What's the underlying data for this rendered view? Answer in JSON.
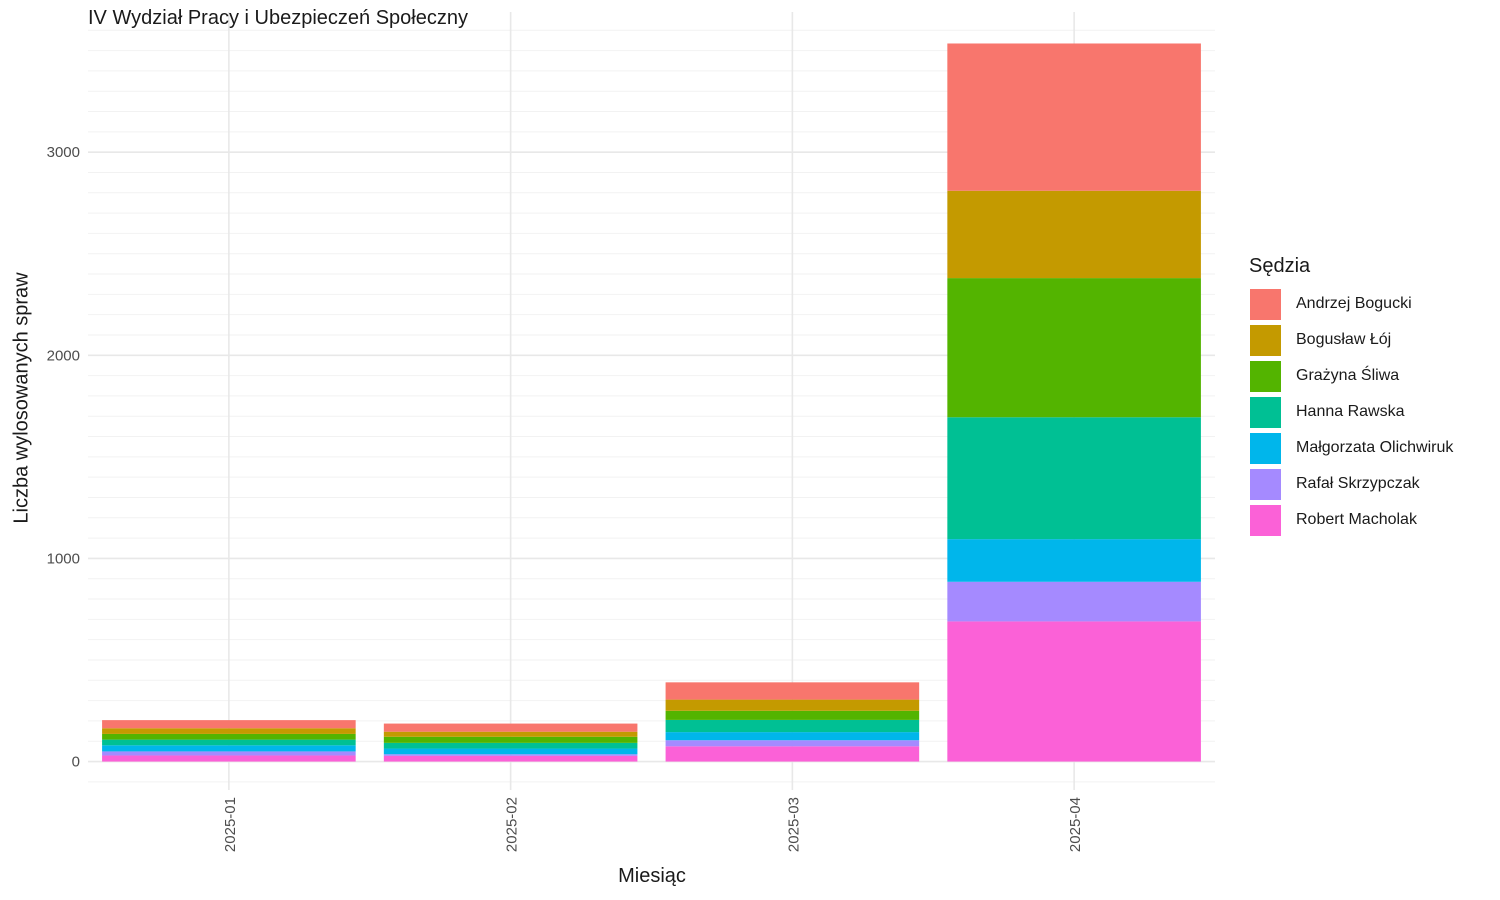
{
  "chart_data": {
    "type": "bar",
    "stacked": true,
    "title": "IV Wydział Pracy i Ubezpieczeń Społeczny",
    "xlabel": "Miesiąc",
    "ylabel": "Liczba wylosowanych spraw",
    "categories": [
      "2025-01",
      "2025-02",
      "2025-03",
      "2025-04"
    ],
    "ylim": [
      -140,
      3690
    ],
    "yticks": [
      0,
      1000,
      2000,
      3000
    ],
    "ytick_labels": [
      "0",
      "1000",
      "2000",
      "3000"
    ],
    "grid": true,
    "legend_title": "Sędzia",
    "legend_position": "right",
    "series": [
      {
        "name": "Andrzej Bogucki",
        "color": "#F8766D",
        "values": [
          40,
          40,
          85,
          725
        ]
      },
      {
        "name": "Bogusław Łój",
        "color": "#C49A00",
        "values": [
          28,
          25,
          55,
          430
        ]
      },
      {
        "name": "Grażyna Śliwa",
        "color": "#53B400",
        "values": [
          28,
          30,
          45,
          685
        ]
      },
      {
        "name": "Hanna Rawska",
        "color": "#00C094",
        "values": [
          28,
          28,
          60,
          600
        ]
      },
      {
        "name": "Małgorzata Olichwiruk",
        "color": "#00B6EB",
        "values": [
          30,
          28,
          40,
          210
        ]
      },
      {
        "name": "Rafał Skrzypczak",
        "color": "#A58AFF",
        "values": [
          20,
          8,
          30,
          195
        ]
      },
      {
        "name": "Robert Macholak",
        "color": "#FB61D7",
        "values": [
          30,
          28,
          75,
          690
        ]
      }
    ]
  }
}
